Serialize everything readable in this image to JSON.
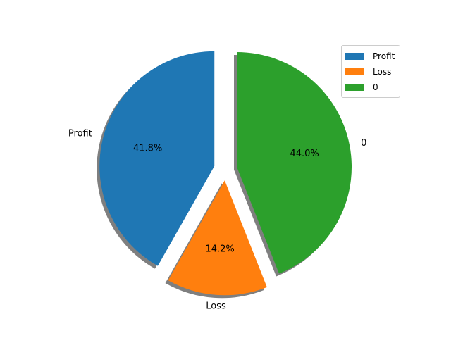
{
  "chart_data": {
    "type": "pie",
    "title": "",
    "labels": [
      "Profit",
      "Loss",
      "0"
    ],
    "values": [
      41.8,
      14.2,
      44.0
    ],
    "percent_labels": [
      "41.8%",
      "14.2%",
      "44.0%"
    ],
    "colors": [
      "#1f77b4",
      "#ff7f0e",
      "#2ca02c"
    ],
    "exploded": [
      true,
      true,
      true
    ],
    "shadow": true,
    "start_angle_deg": 90,
    "direction": "counterclockwise",
    "legend": {
      "position": "top-right",
      "entries": [
        "Profit",
        "Loss",
        "0"
      ]
    }
  }
}
